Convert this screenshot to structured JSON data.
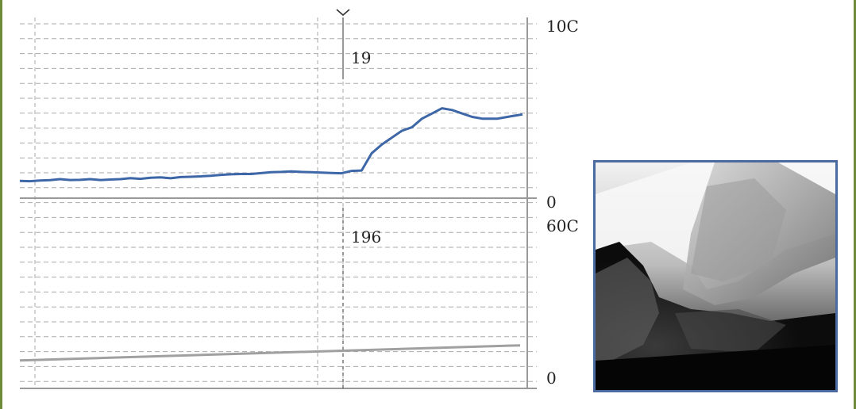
{
  "colors": {
    "frame": "#6f8a3a",
    "grid": "#aaaaaa",
    "axis": "#999999",
    "series_top": "#3e67a8",
    "series_bottom": "#a0a0a0",
    "image_border": "#4a6aa0"
  },
  "chart_data": [
    {
      "type": "line",
      "panel": "top",
      "title": "",
      "axis_right_top_label": "10C",
      "axis_right_bottom_label": "0",
      "inner_label": "19",
      "ylim": [
        0,
        10
      ],
      "grid": true,
      "series": [
        {
          "x": [
            0,
            2,
            4,
            6,
            8,
            10,
            12,
            14,
            16,
            18,
            20,
            22,
            24,
            26,
            28,
            30,
            32,
            34,
            36,
            38,
            40,
            42,
            44,
            46,
            48,
            50,
            52,
            54,
            56,
            58,
            60,
            62,
            64,
            66,
            68,
            70,
            72,
            74,
            76,
            78,
            80,
            82,
            84,
            86,
            88,
            90,
            92,
            94,
            95,
            96,
            97,
            98,
            99,
            100
          ],
          "values": [
            1,
            0.98,
            1.02,
            1.04,
            1.1,
            1.05,
            1.06,
            1.1,
            1.05,
            1.08,
            1.1,
            1.16,
            1.12,
            1.18,
            1.2,
            1.15,
            1.22,
            1.24,
            1.26,
            1.3,
            1.35,
            1.38,
            1.4,
            1.4,
            1.45,
            1.5,
            1.52,
            1.55,
            1.52,
            1.5,
            1.48,
            1.46,
            1.44,
            1.58,
            1.6,
            2.6,
            3.1,
            3.5,
            3.9,
            4.1,
            4.6,
            4.9,
            5.2,
            5.1,
            4.9,
            4.7,
            4.6,
            4.6,
            4.6,
            4.65,
            4.7,
            4.75,
            4.8,
            4.85
          ]
        }
      ]
    },
    {
      "type": "line",
      "panel": "bottom",
      "title": "",
      "axis_right_top_label": "60C",
      "axis_right_bottom_label": "0",
      "inner_label": "196",
      "ylim": [
        0,
        60
      ],
      "grid": true,
      "series": [
        {
          "x": [
            0,
            100
          ],
          "values": [
            9.3,
            14.3
          ]
        }
      ]
    }
  ],
  "image": {
    "kind": "radiograph-photo"
  }
}
